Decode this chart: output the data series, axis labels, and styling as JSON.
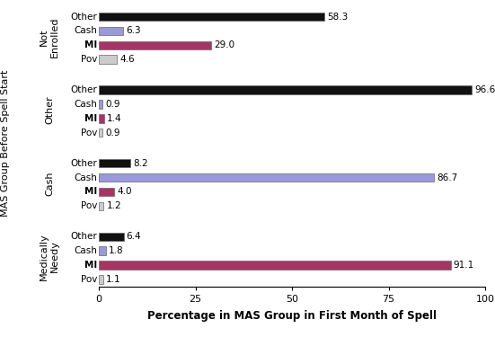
{
  "groups": [
    "Not\nEnrolled",
    "Other",
    "Cash",
    "Medically\nNeedy"
  ],
  "categories": [
    "Other",
    "Cash",
    "MI",
    "Pov"
  ],
  "values": {
    "Not\nEnrolled": [
      58.3,
      6.3,
      29.0,
      4.6
    ],
    "Other": [
      96.6,
      0.9,
      1.4,
      0.9
    ],
    "Cash": [
      8.2,
      86.7,
      4.0,
      1.2
    ],
    "Medically\nNeedy": [
      6.4,
      1.8,
      91.1,
      1.1
    ]
  },
  "bar_colors": [
    "#111111",
    "#9999dd",
    "#aa3366",
    "#cccccc"
  ],
  "bar_edgecolor": "#666666",
  "xlabel": "Percentage in MAS Group in First Month of Spell",
  "ylabel": "MAS Group Before Spell Start",
  "xlim": [
    0,
    100
  ],
  "xticks": [
    0,
    25,
    50,
    75,
    100
  ],
  "background_color": "#ffffff",
  "label_fontsize": 7.5,
  "value_fontsize": 7.5,
  "group_label_fontsize": 8,
  "xlabel_fontsize": 8.5
}
